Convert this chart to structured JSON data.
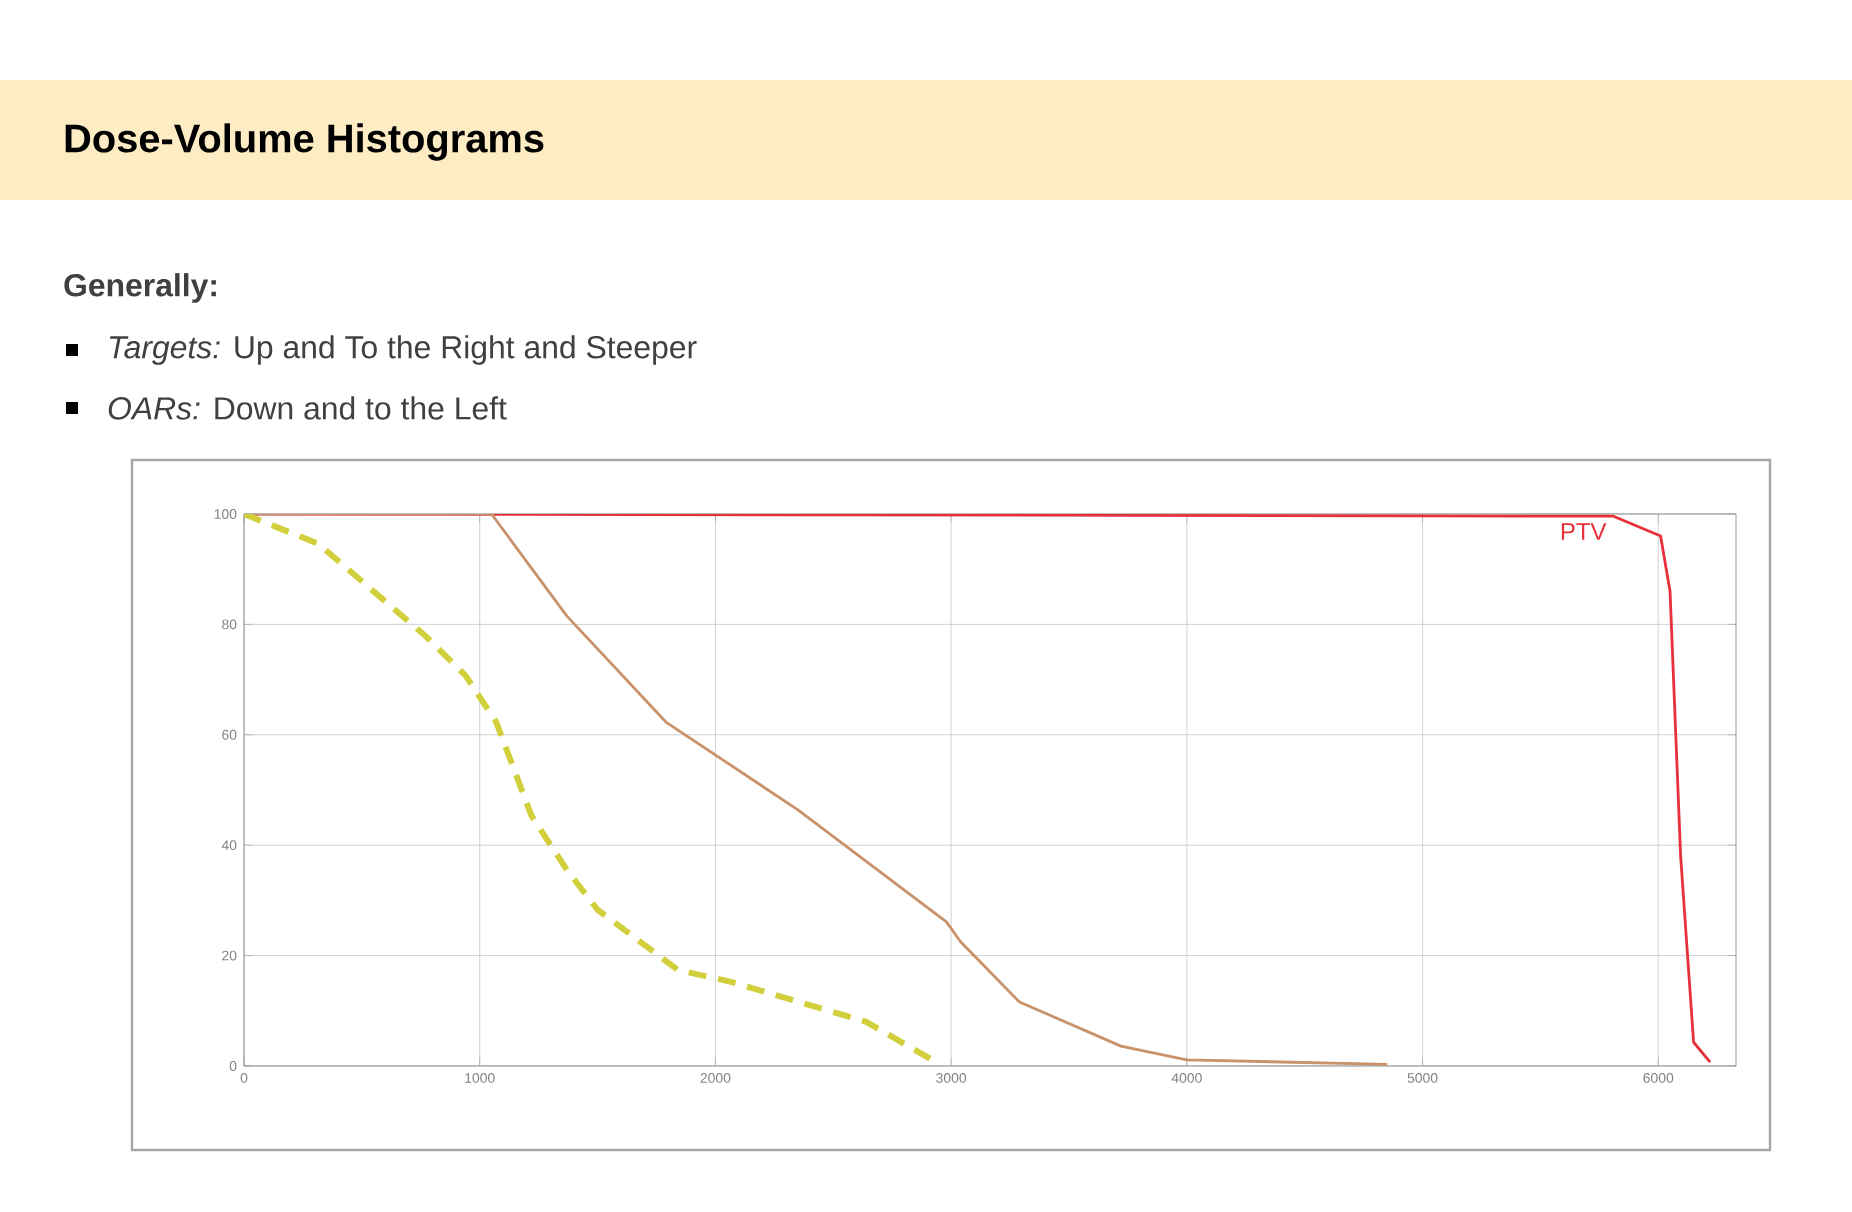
{
  "chart_data": {
    "type": "line",
    "title": "Dose-Volume Histograms",
    "subtitle": "Generally:",
    "annotations": [
      "*Targets:* Up and To the Right and Steeper",
      "*OARs:* Down and to the Left"
    ],
    "xlim": [
      0,
      6330
    ],
    "ylim": [
      0,
      100
    ],
    "xticks": [
      0,
      1000,
      2000,
      3000,
      4000,
      5000,
      6000
    ],
    "yticks": [
      0,
      20,
      40,
      60,
      80,
      100
    ],
    "grid": true,
    "legend": false,
    "marker": "none",
    "series": [
      {
        "name": "PTV",
        "color": "#e8303a",
        "line_style": "solid",
        "x": [
          0,
          5810,
          6010,
          6050,
          6095,
          6150,
          6220
        ],
        "values": [
          100,
          99.6,
          96,
          86,
          38,
          4.3,
          0.7
        ]
      },
      {
        "color": "#c8926a",
        "line_style": "solid",
        "x": [
          0,
          1050,
          1370,
          1790,
          2350,
          2980,
          3040,
          3290,
          3720,
          4000,
          4850
        ],
        "values": [
          100,
          100,
          81.5,
          62.3,
          46.4,
          26.1,
          22.5,
          11.6,
          3.6,
          1.1,
          0.3
        ]
      },
      {
        "color": "#d2cf3c",
        "line_style": "dashed",
        "x": [
          0,
          315,
          770,
          940,
          1070,
          1220,
          1370,
          1500,
          1840,
          2070,
          2640,
          2920
        ],
        "values": [
          100,
          94.6,
          77.9,
          70.7,
          62.3,
          45.3,
          35.5,
          28.3,
          17.4,
          15.2,
          8.0,
          1.1
        ]
      }
    ]
  }
}
